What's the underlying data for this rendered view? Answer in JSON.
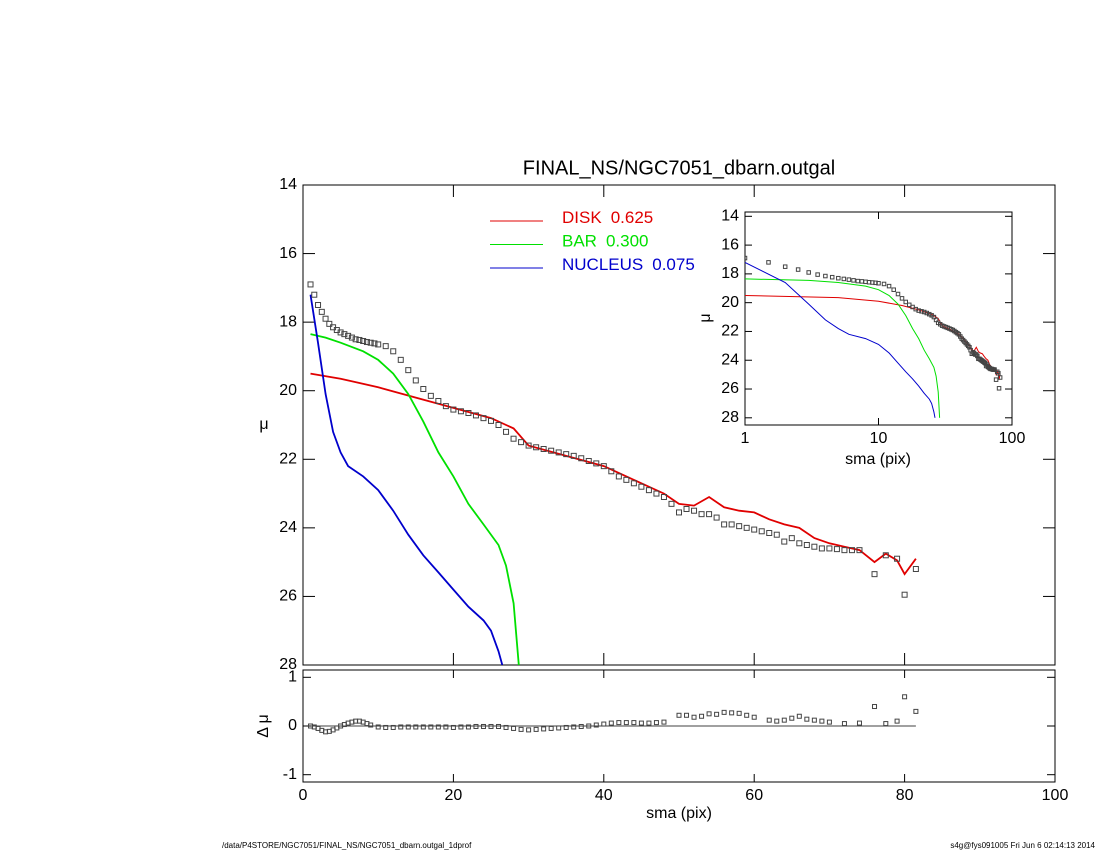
{
  "chart_data": [
    {
      "type": "line",
      "title": "FINAL_NS/NGC7051_dbarn.outgal",
      "ylabel": "μ",
      "xlim": [
        0,
        100
      ],
      "xticks": [
        0,
        20,
        40,
        60,
        80,
        100
      ],
      "ylim": [
        14,
        28
      ],
      "yticks": [
        14,
        16,
        18,
        20,
        22,
        24,
        26,
        28
      ],
      "y_reversed": true,
      "observed": {
        "color": "#444444",
        "x": [
          1,
          1.5,
          2,
          2.5,
          3,
          3.5,
          4,
          4.5,
          5,
          5.5,
          6,
          6.5,
          7,
          7.5,
          8,
          8.5,
          9,
          9.5,
          10,
          11,
          12,
          13,
          14,
          15,
          16,
          17,
          18,
          19,
          20,
          21,
          22,
          23,
          24,
          25,
          26,
          27,
          28,
          29,
          30,
          31,
          32,
          33,
          34,
          35,
          36,
          37,
          38,
          39,
          40,
          41,
          42,
          43,
          44,
          45,
          46,
          47,
          48,
          49,
          50,
          51,
          52,
          53,
          54,
          55,
          56,
          57,
          58,
          59,
          60,
          61,
          62,
          63,
          64,
          65,
          66,
          67,
          68,
          69,
          70,
          71,
          72,
          73,
          74,
          76,
          77.5,
          79,
          80,
          81.5
        ],
        "values": [
          16.9,
          17.2,
          17.5,
          17.7,
          17.9,
          18.05,
          18.15,
          18.23,
          18.3,
          18.35,
          18.4,
          18.45,
          18.5,
          18.52,
          18.55,
          18.58,
          18.6,
          18.62,
          18.65,
          18.7,
          18.85,
          19.1,
          19.4,
          19.7,
          19.95,
          20.15,
          20.3,
          20.45,
          20.55,
          20.6,
          20.65,
          20.72,
          20.8,
          20.88,
          21.0,
          21.2,
          21.4,
          21.5,
          21.6,
          21.65,
          21.7,
          21.75,
          21.8,
          21.85,
          21.9,
          21.97,
          22.05,
          22.12,
          22.2,
          22.35,
          22.5,
          22.6,
          22.7,
          22.8,
          22.9,
          23.0,
          23.1,
          23.3,
          23.55,
          23.45,
          23.5,
          23.6,
          23.6,
          23.7,
          23.9,
          23.9,
          23.95,
          24.0,
          24.05,
          24.1,
          24.15,
          24.2,
          24.4,
          24.3,
          24.45,
          24.5,
          24.55,
          24.6,
          24.6,
          24.62,
          24.65,
          24.65,
          24.65,
          25.35,
          24.8,
          24.9,
          25.95,
          25.2
        ]
      },
      "series": [
        {
          "name": "DISK",
          "fraction": "0.625",
          "color": "#e00000",
          "x": [
            1,
            5,
            10,
            15,
            20,
            25,
            28,
            30,
            35,
            40,
            45,
            48,
            50,
            52,
            54,
            56,
            58,
            60,
            62,
            64,
            66,
            68,
            70,
            72,
            74,
            76,
            77.5,
            79,
            80,
            81.5
          ],
          "values": [
            19.5,
            19.65,
            19.9,
            20.2,
            20.5,
            20.8,
            21.1,
            21.6,
            21.9,
            22.2,
            22.7,
            23.0,
            23.3,
            23.35,
            23.1,
            23.4,
            23.5,
            23.55,
            23.75,
            23.9,
            24.0,
            24.3,
            24.45,
            24.55,
            24.65,
            25.0,
            24.75,
            24.95,
            25.35,
            24.9
          ]
        },
        {
          "name": "BAR",
          "fraction": "0.300",
          "color": "#00e000",
          "x": [
            1,
            3,
            5,
            8,
            10,
            12,
            14,
            16,
            18,
            20,
            22,
            24,
            26,
            27,
            28,
            28.7
          ],
          "values": [
            18.35,
            18.45,
            18.6,
            18.85,
            19.1,
            19.5,
            20.1,
            20.9,
            21.8,
            22.5,
            23.3,
            23.9,
            24.5,
            25.1,
            26.2,
            28.0
          ]
        },
        {
          "name": "NUCLEUS",
          "fraction": "0.075",
          "color": "#0000cc",
          "x": [
            1,
            2,
            3,
            4,
            5,
            6,
            8,
            10,
            12,
            14,
            16,
            18,
            20,
            22,
            24,
            25,
            26,
            26.5
          ],
          "values": [
            17.2,
            18.6,
            20.1,
            21.2,
            21.8,
            22.2,
            22.5,
            22.9,
            23.5,
            24.2,
            24.8,
            25.3,
            25.8,
            26.3,
            26.7,
            27.0,
            27.6,
            28.0
          ]
        }
      ]
    },
    {
      "type": "scatter",
      "xlabel": "sma (pix)",
      "ylabel": "Δ μ",
      "xlim": [
        0,
        100
      ],
      "xticks": [
        0,
        20,
        40,
        60,
        80,
        100
      ],
      "ylim": [
        -1.15,
        1.15
      ],
      "yticks": [
        1,
        0,
        -1
      ],
      "reference_line": 0,
      "color": "#444444",
      "x": [
        1,
        1.5,
        2,
        2.5,
        3,
        3.5,
        4,
        4.5,
        5,
        5.5,
        6,
        6.5,
        7,
        7.5,
        8,
        8.5,
        9,
        10,
        11,
        12,
        13,
        14,
        15,
        16,
        17,
        18,
        19,
        20,
        21,
        22,
        23,
        24,
        25,
        26,
        27,
        28,
        29,
        30,
        31,
        32,
        33,
        34,
        35,
        36,
        37,
        38,
        39,
        40,
        41,
        42,
        43,
        44,
        45,
        46,
        47,
        48,
        50,
        51,
        52,
        53,
        54,
        55,
        56,
        57,
        58,
        59,
        60,
        62,
        63,
        64,
        65,
        66,
        67,
        68,
        69,
        70,
        72,
        74,
        76,
        77.5,
        79,
        80,
        81.5
      ],
      "values": [
        0,
        -0.02,
        -0.05,
        -0.09,
        -0.12,
        -0.11,
        -0.08,
        -0.04,
        0,
        0.03,
        0.06,
        0.08,
        0.1,
        0.1,
        0.08,
        0.05,
        0.02,
        -0.02,
        -0.03,
        -0.03,
        -0.02,
        -0.02,
        -0.02,
        -0.02,
        -0.02,
        -0.02,
        -0.02,
        -0.03,
        -0.02,
        -0.02,
        -0.01,
        -0.01,
        -0.01,
        -0.01,
        -0.03,
        -0.05,
        -0.07,
        -0.08,
        -0.07,
        -0.06,
        -0.05,
        -0.04,
        -0.03,
        -0.02,
        -0.01,
        0,
        0.02,
        0.04,
        0.06,
        0.07,
        0.07,
        0.07,
        0.06,
        0.06,
        0.07,
        0.08,
        0.22,
        0.22,
        0.18,
        0.2,
        0.25,
        0.24,
        0.28,
        0.27,
        0.26,
        0.22,
        0.18,
        0.12,
        0.1,
        0.12,
        0.16,
        0.2,
        0.14,
        0.12,
        0.1,
        0.08,
        0.05,
        0.06,
        0.4,
        0.05,
        0.1,
        0.6,
        0.3
      ]
    },
    {
      "type": "line",
      "xlabel": "sma (pix)",
      "ylabel": "μ",
      "log_x": true,
      "xlim": [
        1,
        100
      ],
      "xticks": [
        1,
        10,
        100
      ],
      "ylim": [
        13.7,
        28.5
      ],
      "yticks": [
        14,
        16,
        18,
        20,
        22,
        24,
        26,
        28
      ],
      "y_reversed": true
    }
  ],
  "footer": {
    "left": "/data/P4STORE/NGC7051/FINAL_NS/NGC7051_dbarn.outgal_1dprof",
    "right": "s4g@fys091005  Fri Jun  6 02:14:13 2014"
  }
}
